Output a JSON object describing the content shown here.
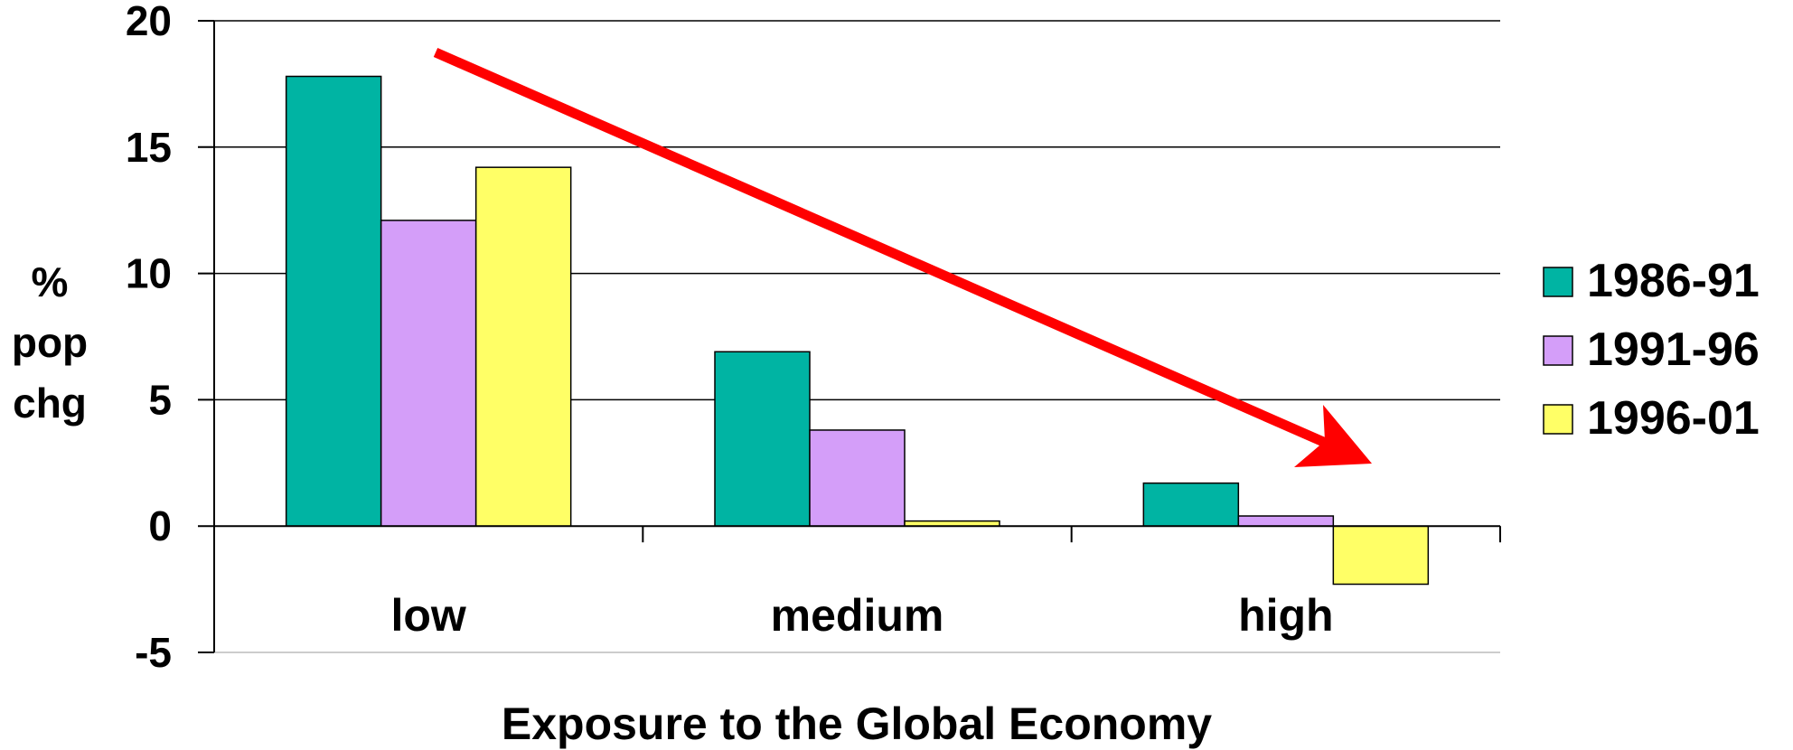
{
  "chart_data": {
    "type": "bar",
    "categories": [
      "low",
      "medium",
      "high"
    ],
    "series": [
      {
        "name": "1986-91",
        "values": [
          17.8,
          6.9,
          1.7
        ],
        "color": "#00b4a3"
      },
      {
        "name": "1991-96",
        "values": [
          12.1,
          3.8,
          0.4
        ],
        "color": "#d49ef9"
      },
      {
        "name": "1996-01",
        "values": [
          14.2,
          0.2,
          -2.3
        ],
        "color": "#ffff66"
      }
    ],
    "ylim": [
      -5,
      20
    ],
    "yticks": [
      "20",
      "15",
      "10",
      "5",
      "0",
      "-5"
    ],
    "ylabel": [
      "%",
      "pop",
      "chg"
    ],
    "xlabel": "Exposure to the Global Economy",
    "grid": true,
    "legend": "right",
    "annotation": {
      "type": "arrow",
      "color": "#ff0000",
      "direction": "downward trend from low to high"
    }
  }
}
